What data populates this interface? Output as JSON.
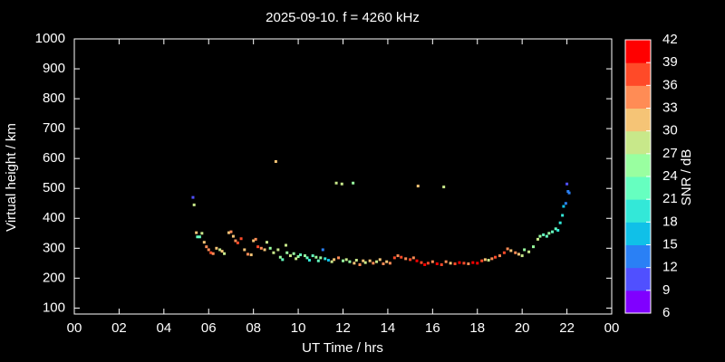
{
  "chart_data": {
    "type": "scatter",
    "title": "2025-09-10. f = 4260 kHz",
    "xlabel": "UT Time / hrs",
    "ylabel": "Virtual height / km",
    "xlim": [
      0,
      24
    ],
    "xticks": [
      {
        "value": 0,
        "label": "00"
      },
      {
        "value": 2,
        "label": "02"
      },
      {
        "value": 4,
        "label": "04"
      },
      {
        "value": 6,
        "label": "06"
      },
      {
        "value": 8,
        "label": "08"
      },
      10,
      12,
      14,
      16,
      18,
      20,
      22,
      {
        "value": 24,
        "label": "00"
      }
    ],
    "ylim": [
      80,
      1000
    ],
    "yticks": [
      100,
      200,
      300,
      400,
      500,
      600,
      700,
      800,
      900,
      1000
    ],
    "x": [
      5.3,
      5.35,
      5.45,
      5.5,
      5.6,
      5.7,
      5.8,
      5.9,
      6.0,
      6.1,
      6.2,
      6.35,
      6.5,
      6.6,
      6.7,
      6.9,
      7.0,
      7.1,
      7.2,
      7.3,
      7.45,
      7.6,
      7.75,
      7.9,
      8.0,
      8.1,
      8.2,
      8.35,
      8.5,
      8.6,
      8.75,
      8.9,
      9.0,
      9.1,
      9.2,
      9.3,
      9.45,
      9.5,
      9.65,
      9.8,
      9.9,
      10.0,
      10.1,
      10.3,
      10.4,
      10.5,
      10.65,
      10.8,
      10.9,
      11.0,
      11.1,
      11.2,
      11.35,
      11.5,
      11.6,
      11.7,
      11.8,
      11.95,
      12.0,
      12.15,
      12.3,
      12.45,
      12.5,
      12.6,
      12.75,
      12.9,
      13.0,
      13.2,
      13.35,
      13.5,
      13.65,
      13.8,
      13.95,
      14.1,
      14.3,
      14.45,
      14.6,
      14.8,
      15.0,
      15.15,
      15.3,
      15.35,
      15.5,
      15.65,
      15.8,
      16.0,
      16.2,
      16.4,
      16.5,
      16.6,
      16.8,
      17.0,
      17.2,
      17.4,
      17.6,
      17.8,
      18.0,
      18.2,
      18.35,
      18.5,
      18.65,
      18.8,
      19.0,
      19.2,
      19.35,
      19.5,
      19.7,
      19.85,
      20.0,
      20.1,
      20.3,
      20.5,
      20.7,
      20.8,
      20.95,
      21.1,
      21.2,
      21.35,
      21.5,
      21.6,
      21.7,
      21.8,
      21.85,
      21.95,
      22.0,
      22.05,
      22.1
    ],
    "values": [
      470,
      445,
      352,
      338,
      338,
      350,
      320,
      305,
      295,
      285,
      282,
      300,
      295,
      290,
      282,
      352,
      355,
      340,
      325,
      318,
      332,
      295,
      280,
      278,
      325,
      330,
      305,
      300,
      295,
      320,
      300,
      285,
      590,
      295,
      270,
      262,
      310,
      285,
      275,
      282,
      265,
      272,
      278,
      275,
      268,
      260,
      275,
      270,
      258,
      268,
      295,
      265,
      260,
      255,
      262,
      518,
      268,
      515,
      258,
      262,
      255,
      518,
      250,
      260,
      245,
      258,
      252,
      258,
      250,
      255,
      262,
      248,
      255,
      250,
      268,
      275,
      270,
      265,
      262,
      268,
      258,
      508,
      252,
      245,
      250,
      255,
      248,
      245,
      505,
      255,
      250,
      248,
      252,
      250,
      248,
      252,
      250,
      258,
      262,
      260,
      265,
      270,
      275,
      285,
      298,
      292,
      285,
      280,
      275,
      295,
      288,
      305,
      330,
      340,
      345,
      340,
      350,
      355,
      365,
      360,
      385,
      410,
      440,
      450,
      515,
      490,
      485
    ],
    "snr": [
      10,
      28,
      30,
      22,
      21,
      27,
      30,
      33,
      33,
      36,
      33,
      30,
      27,
      30,
      27,
      30,
      33,
      30,
      33,
      36,
      38,
      30,
      33,
      30,
      30,
      33,
      36,
      33,
      30,
      27,
      25,
      27,
      31,
      27,
      24,
      22,
      27,
      25,
      27,
      24,
      27,
      24,
      22,
      24,
      21,
      19,
      22,
      24,
      21,
      24,
      14,
      18,
      15,
      27,
      30,
      28,
      33,
      27,
      25,
      27,
      24,
      26,
      30,
      27,
      33,
      30,
      27,
      30,
      33,
      27,
      30,
      33,
      30,
      33,
      36,
      33,
      36,
      33,
      36,
      33,
      39,
      30,
      36,
      40,
      36,
      33,
      39,
      36,
      29,
      33,
      30,
      36,
      39,
      36,
      33,
      39,
      40,
      36,
      30,
      27,
      33,
      36,
      33,
      36,
      33,
      30,
      33,
      30,
      27,
      25,
      27,
      24,
      27,
      24,
      22,
      21,
      24,
      22,
      21,
      20,
      19,
      18,
      15,
      14,
      9,
      12,
      13
    ],
    "colorbar": {
      "label": "SNR / dB",
      "ticks": [
        6,
        9,
        12,
        15,
        18,
        21,
        24,
        27,
        30,
        33,
        36,
        39,
        42
      ],
      "colors": [
        "#8000ff",
        "#5050ff",
        "#2a80f5",
        "#10c0e8",
        "#33e8d8",
        "#66ffc0",
        "#99ffa0",
        "#c8e88a",
        "#f5c476",
        "#ff8c55",
        "#ff4a28",
        "#ff0000"
      ]
    }
  }
}
